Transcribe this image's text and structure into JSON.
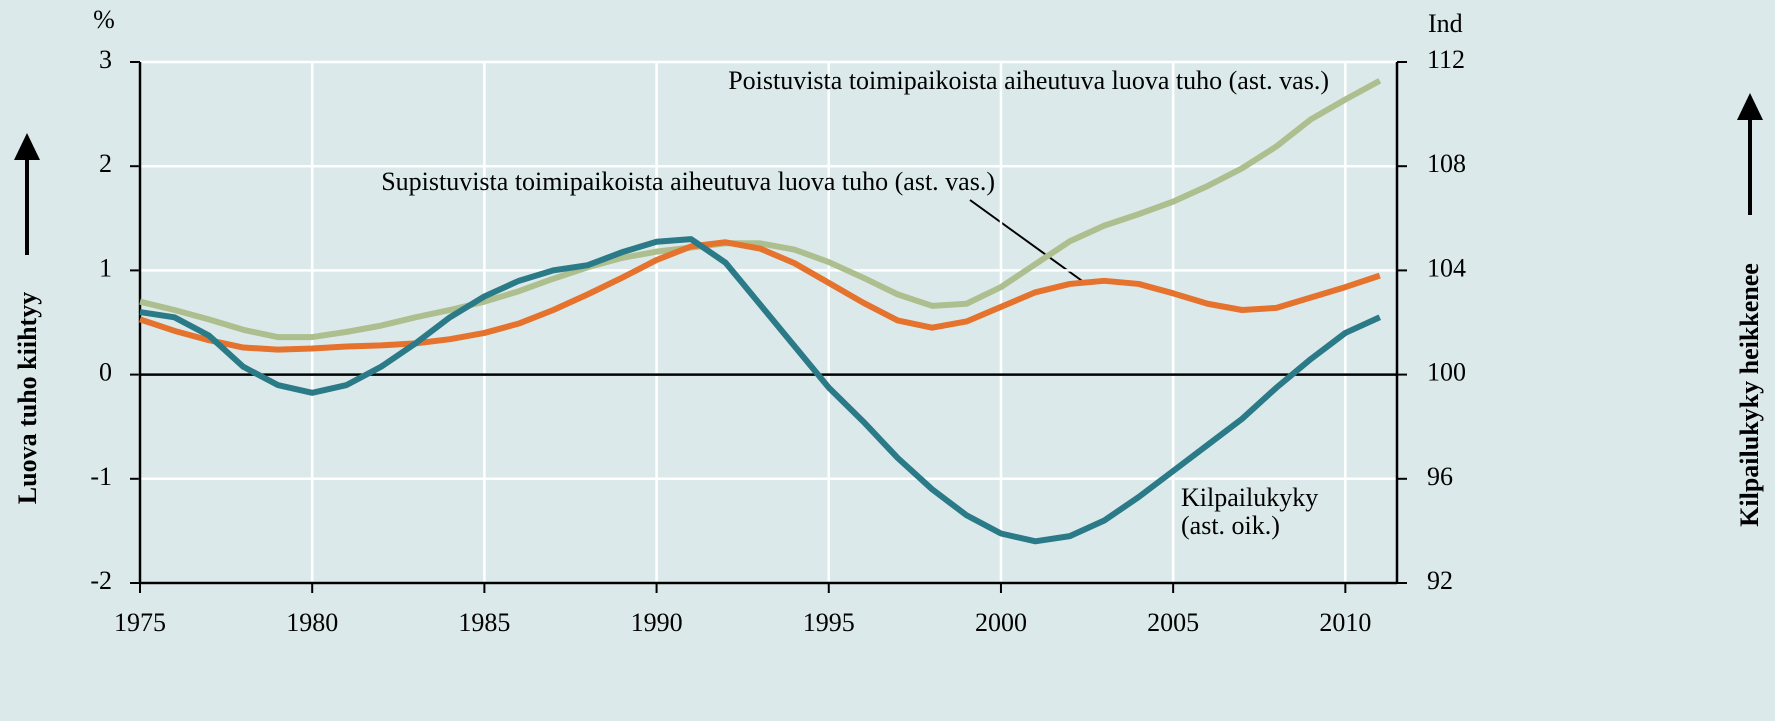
{
  "chart_data": {
    "type": "line",
    "y_label": "Luova tuho kiihtyy",
    "y2_label": "Kilpailukyky heikkenee",
    "y_unit": "%",
    "y2_unit": "Ind",
    "x": [
      1975,
      1976,
      1977,
      1978,
      1979,
      1980,
      1981,
      1982,
      1983,
      1984,
      1985,
      1986,
      1987,
      1988,
      1989,
      1990,
      1991,
      1992,
      1993,
      1994,
      1995,
      1996,
      1997,
      1998,
      1999,
      2000,
      2001,
      2002,
      2003,
      2004,
      2005,
      2006,
      2007,
      2008,
      2009,
      2010,
      2011
    ],
    "xlim": [
      1975,
      2011.5
    ],
    "xticks": [
      1975,
      1980,
      1985,
      1990,
      1995,
      2000,
      2005,
      2010
    ],
    "ylim": [
      -2,
      3
    ],
    "yticks": [
      -2,
      -1,
      0,
      1,
      2,
      3
    ],
    "y2lim": [
      92,
      112
    ],
    "y2ticks": [
      92,
      96,
      100,
      104,
      108,
      112
    ],
    "grid": true,
    "series": [
      {
        "name": "Poistuvista toimipaikoista aiheutuva luova tuho (ast. vas.)",
        "color": "#adbf8f",
        "values": [
          0.7,
          0.62,
          0.53,
          0.43,
          0.36,
          0.36,
          0.41,
          0.47,
          0.55,
          0.62,
          0.7,
          0.8,
          0.92,
          1.03,
          1.12,
          1.18,
          1.22,
          1.26,
          1.26,
          1.2,
          1.08,
          0.93,
          0.77,
          0.66,
          0.68,
          0.84,
          1.06,
          1.28,
          1.43,
          1.54,
          1.66,
          1.81,
          1.98,
          2.19,
          2.45,
          2.64,
          2.82
        ]
      },
      {
        "name": "Supistuvista toimipaikoista aiheutuva luova tuho (ast. vas.)",
        "color": "#e5722d",
        "values": [
          0.53,
          0.42,
          0.33,
          0.26,
          0.24,
          0.25,
          0.27,
          0.28,
          0.3,
          0.34,
          0.4,
          0.49,
          0.62,
          0.77,
          0.93,
          1.1,
          1.23,
          1.27,
          1.21,
          1.07,
          0.88,
          0.69,
          0.52,
          0.45,
          0.51,
          0.65,
          0.79,
          0.87,
          0.9,
          0.87,
          0.78,
          0.68,
          0.62,
          0.64,
          0.74,
          0.84,
          0.95
        ]
      },
      {
        "name": "Kilpailukyky",
        "color": "#2b7a87",
        "axis": "y2",
        "values": [
          102.4,
          102.2,
          101.5,
          100.3,
          99.6,
          99.3,
          99.6,
          100.3,
          101.2,
          102.2,
          103.0,
          103.6,
          104.0,
          104.2,
          104.7,
          105.1,
          105.2,
          104.3,
          102.7,
          101.1,
          99.5,
          98.2,
          96.8,
          95.6,
          94.6,
          93.9,
          93.6,
          93.8,
          94.4,
          95.3,
          96.3,
          97.3,
          98.3,
          99.5,
          100.6,
          101.6,
          102.2
        ]
      }
    ],
    "annotations": [
      "(ast. oik.)"
    ]
  }
}
